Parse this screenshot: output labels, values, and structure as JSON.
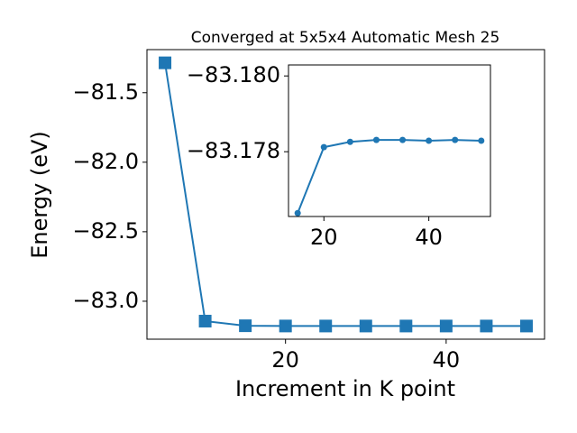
{
  "chart_data": [
    {
      "type": "line",
      "title": "Converged at 5x5x4 Automatic Mesh 25",
      "xlabel": "Increment in K point",
      "ylabel": "Energy (eV)",
      "marker": "square",
      "x": [
        5,
        10,
        15,
        20,
        25,
        30,
        35,
        40,
        45,
        50
      ],
      "series": [
        {
          "name": "Energy",
          "color": "#1f77b4",
          "values": [
            -81.285,
            -83.143,
            -83.17638,
            -83.17812,
            -83.17826,
            -83.17831,
            -83.17831,
            -83.17829,
            -83.17831,
            -83.17829
          ]
        }
      ],
      "xlim": [
        2.75,
        52.25
      ],
      "xticks": [
        20,
        40
      ],
      "ylim": [
        -83.273,
        -81.19
      ],
      "yticks": [
        {
          "value": -83.0,
          "label": "−83.0"
        },
        {
          "value": -82.5,
          "label": "−82.5"
        },
        {
          "value": -82.0,
          "label": "−82.0"
        },
        {
          "value": -81.5,
          "label": "−81.5"
        }
      ]
    },
    {
      "type": "line",
      "marker": "circle",
      "x": [
        15,
        20,
        25,
        30,
        35,
        40,
        45,
        50
      ],
      "series": [
        {
          "name": "Energy",
          "color": "#1f77b4",
          "values": [
            -83.17638,
            -83.17812,
            -83.17826,
            -83.17831,
            -83.17831,
            -83.17829,
            -83.17831,
            -83.17829
          ]
        }
      ],
      "xlim": [
        13.25,
        51.75
      ],
      "xticks": [
        20,
        40
      ],
      "ylim": [
        -83.17629,
        -83.18029
      ],
      "yticks": [
        {
          "value": -83.18,
          "label": "−83.180"
        },
        {
          "value": -83.178,
          "label": "−83.178"
        }
      ]
    }
  ]
}
